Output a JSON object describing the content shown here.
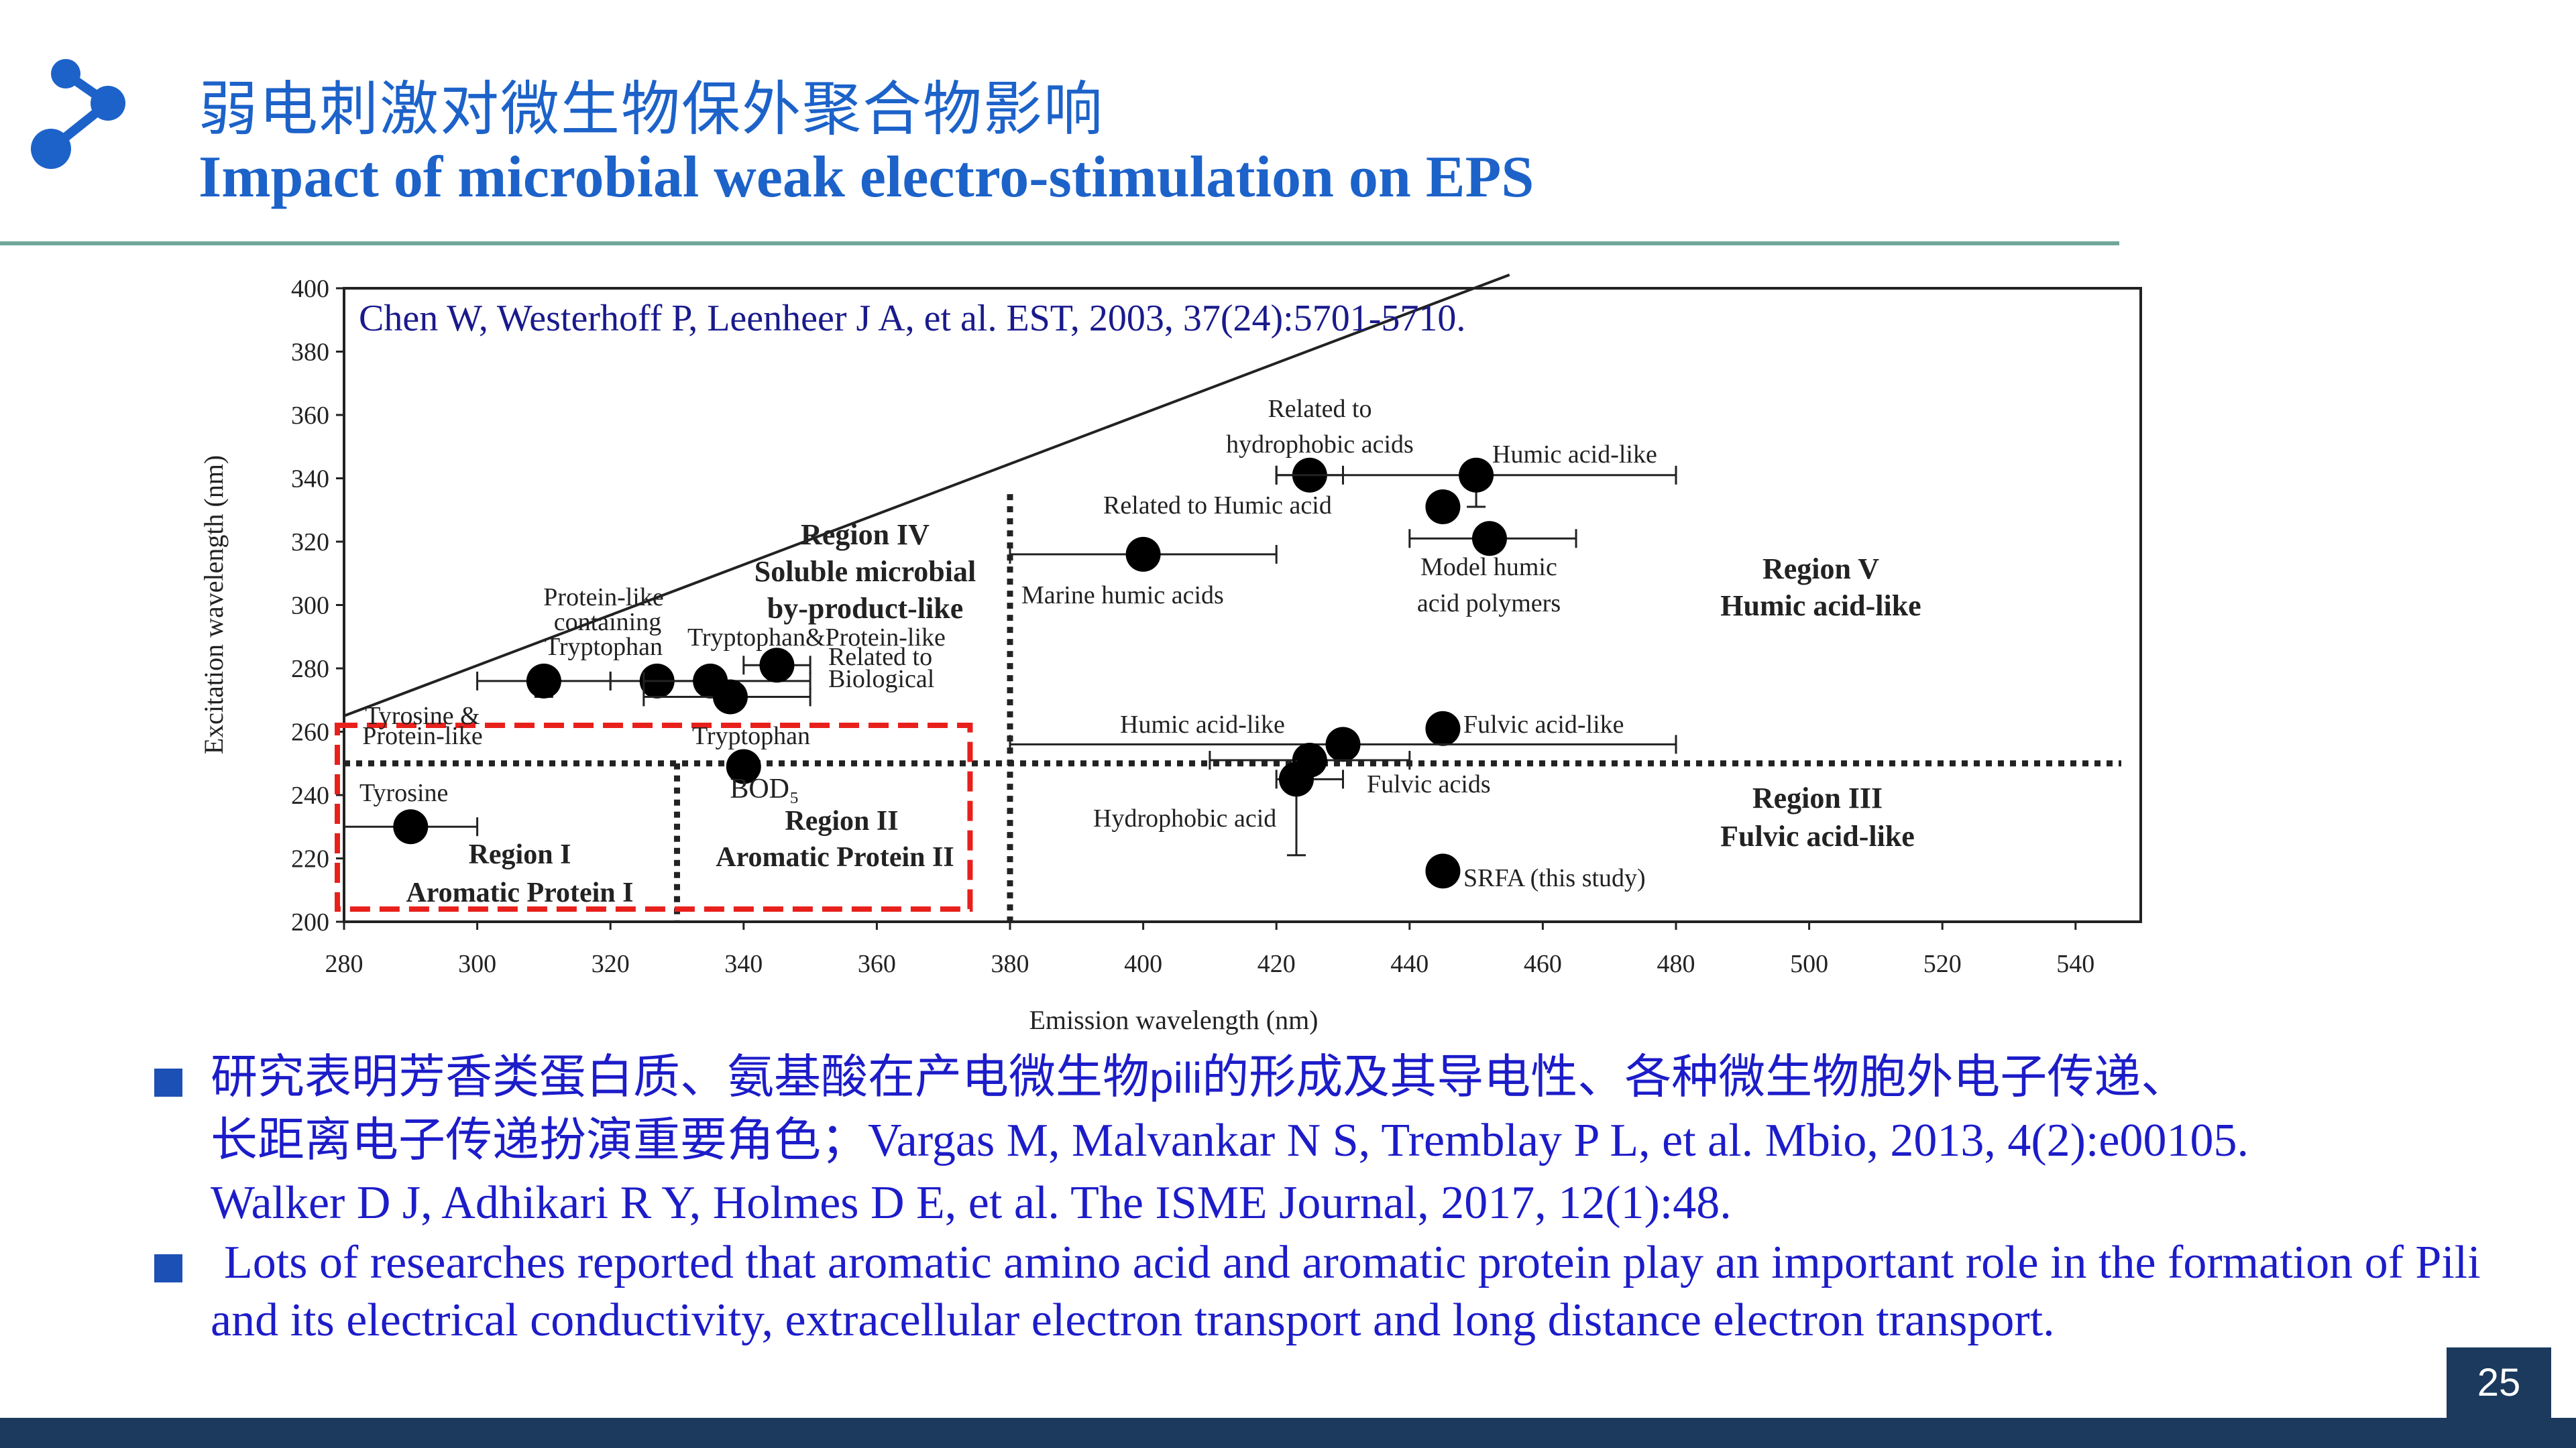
{
  "header": {
    "title_zh": "弱电刺激对微生物保外聚合物影响",
    "title_en": "Impact of microbial weak electro-stimulation on EPS",
    "logo_icon": "share-nodes-icon"
  },
  "colors": {
    "brand_blue": "#1c62c9",
    "text_blue": "#1c1cc9",
    "footer": "#1b3a5e",
    "highlight_red": "#e8201c"
  },
  "chart_data": {
    "type": "scatter",
    "citation": "Chen W, Westerhoff P, Leenheer J A, et al. EST, 2003, 37(24):5701-5710.",
    "xlabel": "Emission wavelength (nm)",
    "ylabel": "Excitation wavelength (nm)",
    "xlim": [
      280,
      550
    ],
    "ylim": [
      200,
      400
    ],
    "xticks": [
      "280",
      "300",
      "320",
      "340",
      "360",
      "380",
      "400",
      "420",
      "440",
      "460",
      "480",
      "500",
      "520",
      "540"
    ],
    "yticks": [
      "200",
      "220",
      "240",
      "260",
      "280",
      "300",
      "320",
      "340",
      "360",
      "380",
      "400"
    ],
    "points": [
      {
        "x": 290,
        "y": 230,
        "xerr": [
          280,
          300
        ]
      },
      {
        "x": 310,
        "y": 276,
        "xerr": [
          300,
          320
        ],
        "yerr": [
          271,
          281
        ]
      },
      {
        "x": 327,
        "y": 276,
        "xerr": [
          320,
          335
        ]
      },
      {
        "x": 335,
        "y": 276,
        "xerr": [
          325,
          350
        ]
      },
      {
        "x": 338,
        "y": 271,
        "xerr": [
          325,
          350
        ]
      },
      {
        "x": 345,
        "y": 281,
        "xerr": [
          340,
          350
        ]
      },
      {
        "x": 340,
        "y": 249
      },
      {
        "x": 400,
        "y": 316,
        "xerr": [
          380,
          420
        ]
      },
      {
        "x": 425,
        "y": 341,
        "xerr": [
          420,
          430
        ]
      },
      {
        "x": 450,
        "y": 341,
        "xerr": [
          420,
          480
        ],
        "yerr": [
          331,
          341
        ]
      },
      {
        "x": 445,
        "y": 331
      },
      {
        "x": 452,
        "y": 321,
        "xerr": [
          440,
          465
        ]
      },
      {
        "x": 445,
        "y": 261
      },
      {
        "x": 430,
        "y": 256,
        "xerr": [
          380,
          480
        ]
      },
      {
        "x": 425,
        "y": 251,
        "xerr": [
          410,
          440
        ]
      },
      {
        "x": 423,
        "y": 245,
        "xerr": [
          420,
          430
        ],
        "yerr": [
          221,
          251
        ]
      },
      {
        "x": 445,
        "y": 216
      }
    ],
    "diagonal_line": {
      "from": [
        280,
        265
      ],
      "to": [
        455,
        400
      ]
    },
    "boundaries": {
      "vertical_dotted": [
        330,
        380
      ],
      "horizontal_dotted": 250
    },
    "highlight_box": {
      "x": [
        280,
        374
      ],
      "y": [
        204,
        262
      ]
    },
    "annotations": {
      "region1": [
        "Region I",
        "Aromatic Protein I"
      ],
      "region2": [
        "BOD₅",
        "Region II",
        "Aromatic Protein II"
      ],
      "region3": [
        "Region III",
        "Fulvic acid-like"
      ],
      "region4": [
        "Region IV",
        "Soluble microbial",
        "by-product-like"
      ],
      "region5": [
        "Region V",
        "Humic acid-like"
      ],
      "tyrosine": "Tyrosine",
      "tyrosine_protein": [
        "Tyrosine &",
        "Protein-like"
      ],
      "tryptophan": "Tryptophan",
      "protein_like_tryptophan": [
        "Protein-like",
        "containing",
        "Tryptophan"
      ],
      "tryptophan_protein": "Tryptophan&Protein-like",
      "biological": [
        "Related to",
        "Biological"
      ],
      "marine": "Marine humic acids",
      "hydrophobic_related": [
        "Related to",
        "hydrophobic acids"
      ],
      "humic_related": "Related to Humic acid",
      "humic_like_top": "Humic acid-like",
      "model_humic": [
        "Model humic",
        "acid polymers"
      ],
      "humic_like_mid": "Humic acid-like",
      "fulvic_like": "Fulvic acid-like",
      "fulvic_acids": "Fulvic acids",
      "hydrophobic_acid": "Hydrophobic acid",
      "srfa": "SRFA (this study)"
    }
  },
  "bullets": [
    {
      "zh": "研究表明芳香类蛋白质、氨基酸在产电微生物",
      "pili": "pili",
      "zh2": "的形成及其导电性、各种微生物胞外电子传递、",
      "zh3": "长距离电子传递扮演重要角色；",
      "ref1": "Vargas M, Malvankar N S, Tremblay P L, et al. Mbio, 2013, 4(2):e00105.",
      "ref2": "Walker D J, Adhikari R Y, Holmes D E, et al. The ISME Journal, 2017, 12(1):48."
    },
    {
      "en": "Lots of researches reported that aromatic amino acid and aromatic protein play an important role in the formation of Pili and its electrical conductivity, extracellular electron transport and long distance electron transport."
    }
  ],
  "page_number": "25"
}
